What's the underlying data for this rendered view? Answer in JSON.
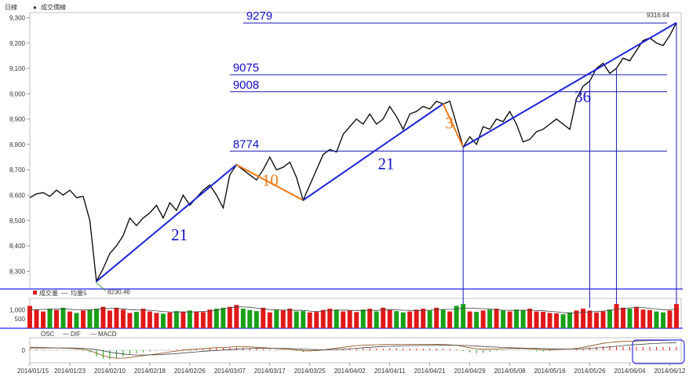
{
  "chart_data": {
    "type": "line",
    "header": {
      "period_label": "日線",
      "series_label": "成交價線"
    },
    "colors": {
      "price": "#000000",
      "trend": "#1e24d8",
      "correction": "#f07a14",
      "level": "#1a1ab4",
      "up": "#e01818",
      "down": "#18a018",
      "frame": "#2020ff",
      "annotation": "#1010c8"
    },
    "price": {
      "ylim": [
        8230,
        9320
      ],
      "yticks": [
        8300,
        8400,
        8500,
        8600,
        8700,
        8800,
        8900,
        9000,
        9100,
        9200,
        9300
      ],
      "ytick_labels": [
        "8,300",
        "8,400",
        "8,500",
        "8,600",
        "8,700",
        "8,800",
        "8,900",
        "9,000",
        "9,100",
        "9,200",
        "9,300"
      ],
      "low_label": "8230.46",
      "high_label": "9316.64",
      "values": [
        8590,
        8605,
        8610,
        8595,
        8620,
        8600,
        8620,
        8590,
        8595,
        8500,
        8260,
        8310,
        8370,
        8400,
        8440,
        8510,
        8480,
        8510,
        8530,
        8560,
        8510,
        8570,
        8540,
        8600,
        8560,
        8590,
        8620,
        8640,
        8600,
        8550,
        8680,
        8720,
        8700,
        8680,
        8660,
        8700,
        8750,
        8700,
        8710,
        8730,
        8670,
        8580,
        8640,
        8700,
        8760,
        8780,
        8770,
        8840,
        8870,
        8900,
        8880,
        8920,
        8880,
        8900,
        8950,
        8910,
        8860,
        8920,
        8930,
        8950,
        8940,
        8970,
        8960,
        8970,
        8880,
        8790,
        8830,
        8800,
        8870,
        8860,
        8900,
        8890,
        8930,
        8880,
        8810,
        8820,
        8850,
        8860,
        8880,
        8900,
        8880,
        8860,
        8980,
        9030,
        9050,
        9100,
        9120,
        9080,
        9100,
        9140,
        9130,
        9170,
        9210,
        9220,
        9200,
        9190,
        9230,
        9280
      ]
    },
    "trend_lines": [
      {
        "label": "21",
        "from": 10,
        "to": 31,
        "color_key": "trend"
      },
      {
        "label": "10",
        "from": 31,
        "to": 41,
        "color_key": "correction"
      },
      {
        "label": "21",
        "from": 41,
        "to": 62,
        "color_key": "trend"
      },
      {
        "label": "3",
        "from": 62,
        "to": 65,
        "color_key": "correction"
      },
      {
        "label": "36",
        "from": 65,
        "to": 97,
        "color_key": "trend"
      }
    ],
    "levels": [
      {
        "label": "9279",
        "value": 9279,
        "from": 32
      },
      {
        "label": "9075",
        "value": 9075,
        "from": 30
      },
      {
        "label": "9008",
        "value": 9008,
        "from": 30
      },
      {
        "label": "8774",
        "value": 8774,
        "from": 30
      }
    ],
    "vertical_markers": [
      65,
      84,
      88,
      97
    ],
    "volume": {
      "legend_label": "成交量",
      "ma_label": "均量5",
      "ylim": [
        0,
        1600
      ],
      "yticks": [
        500,
        1000
      ],
      "ytick_labels": [
        "500",
        "1,000"
      ],
      "values": [
        1200,
        1000,
        900,
        1050,
        980,
        1100,
        900,
        820,
        950,
        1000,
        1050,
        1150,
        950,
        1100,
        1000,
        820,
        880,
        1050,
        900,
        820,
        780,
        850,
        920,
        880,
        950,
        900,
        870,
        1000,
        1050,
        1100,
        1150,
        1250,
        1050,
        980,
        920,
        1100,
        850,
        1000,
        980,
        1050,
        900,
        920,
        850,
        880,
        980,
        1050,
        1000,
        900,
        950,
        870,
        1000,
        1050,
        900,
        1100,
        980,
        920,
        850,
        900,
        1000,
        1050,
        950,
        1100,
        1000,
        900,
        1200,
        1300,
        900,
        880,
        950,
        1000,
        1050,
        950,
        900,
        1000,
        980,
        1050,
        900,
        880,
        820,
        800,
        750,
        850,
        950,
        1050,
        950,
        850,
        900,
        1000,
        1300,
        1100,
        1050,
        1150,
        1000,
        980,
        900,
        850,
        950,
        1300
      ],
      "ma_values": [
        1000,
        1000,
        1010,
        1020,
        1025,
        1030,
        1020,
        990,
        980,
        980,
        1010,
        1050,
        1060,
        1070,
        1040,
        1000,
        980,
        975,
        965,
        930,
        900,
        880,
        870,
        875,
        880,
        885,
        900,
        920,
        960,
        1030,
        1090,
        1150,
        1140,
        1130,
        1080,
        1040,
        1000,
        990,
        970,
        980,
        960,
        960,
        920,
        900,
        920,
        950,
        970,
        975,
        960,
        955,
        960,
        960,
        955,
        990,
        1000,
        990,
        970,
        960,
        940,
        950,
        970,
        1000,
        1010,
        1010,
        1030,
        1080,
        1080,
        1060,
        1050,
        1030,
        1000,
        970,
        960,
        960,
        970,
        970,
        950,
        940,
        910,
        880,
        840,
        810,
        820,
        860,
        880,
        900,
        920,
        960,
        1010,
        1060,
        1090,
        1120,
        1110,
        1070,
        1030,
        1000,
        990,
        1030
      ]
    },
    "macd": {
      "labels": [
        "OSC",
        "DIF",
        "MACD"
      ],
      "zero_label": "0",
      "ylim": [
        -60,
        60
      ],
      "osc": [
        5,
        4,
        3,
        2,
        2,
        1,
        0,
        -2,
        -4,
        -10,
        -30,
        -40,
        -42,
        -38,
        -30,
        -22,
        -15,
        -10,
        -6,
        -3,
        0,
        2,
        4,
        5,
        6,
        7,
        8,
        9,
        10,
        11,
        12,
        14,
        12,
        10,
        8,
        6,
        4,
        3,
        2,
        1,
        -4,
        -8,
        -6,
        -3,
        0,
        2,
        4,
        6,
        8,
        10,
        10,
        9,
        8,
        8,
        9,
        9,
        8,
        8,
        8,
        8,
        8,
        8,
        7,
        6,
        4,
        -4,
        -10,
        -14,
        -12,
        -8,
        -4,
        -2,
        0,
        1,
        0,
        -3,
        -5,
        -6,
        -4,
        -2,
        0,
        1,
        4,
        8,
        12,
        16,
        18,
        18,
        18,
        17,
        16,
        16,
        16,
        16,
        16,
        15,
        15,
        16
      ],
      "dif": [
        14,
        14,
        13,
        12,
        11,
        10,
        9,
        7,
        4,
        -2,
        -14,
        -26,
        -34,
        -38,
        -38,
        -35,
        -30,
        -26,
        -22,
        -18,
        -13,
        -8,
        -4,
        0,
        3,
        6,
        8,
        10,
        12,
        13,
        15,
        17,
        17,
        16,
        14,
        12,
        10,
        8,
        6,
        5,
        1,
        -3,
        -3,
        -1,
        2,
        6,
        10,
        14,
        18,
        22,
        24,
        25,
        26,
        27,
        28,
        28,
        28,
        28,
        28,
        28,
        28,
        28,
        27,
        26,
        24,
        18,
        12,
        7,
        5,
        5,
        6,
        7,
        8,
        8,
        8,
        6,
        5,
        3,
        3,
        4,
        5,
        6,
        9,
        14,
        20,
        27,
        33,
        37,
        40,
        42,
        43,
        44,
        45,
        46,
        47,
        47,
        48,
        49
      ],
      "macd": [
        11,
        11,
        11,
        11,
        11,
        11,
        11,
        10,
        9,
        7,
        3,
        -3,
        -9,
        -14,
        -18,
        -21,
        -23,
        -23,
        -22,
        -22,
        -20,
        -18,
        -16,
        -13,
        -10,
        -8,
        -5,
        -3,
        -1,
        1,
        3,
        5,
        7,
        8,
        9,
        9,
        9,
        9,
        9,
        8,
        7,
        5,
        4,
        3,
        2,
        3,
        4,
        5,
        7,
        9,
        12,
        14,
        16,
        18,
        19,
        20,
        21,
        22,
        22,
        23,
        23,
        24,
        24,
        24,
        24,
        23,
        22,
        20,
        18,
        16,
        15,
        13,
        12,
        11,
        10,
        9,
        9,
        8,
        7,
        6,
        6,
        6,
        6,
        7,
        9,
        11,
        13,
        16,
        19,
        22,
        25,
        27,
        29,
        31,
        32,
        34,
        35,
        36
      ]
    },
    "x_labels": [
      "2014/01/15",
      "2014/01/23",
      "2014/02/10",
      "2014/02/18",
      "2014/02/26",
      "2014/03/07",
      "2014/03/17",
      "2014/03/25",
      "2014/04/02",
      "2014/04/11",
      "2014/04/21",
      "2014/04/29",
      "2014/05/08",
      "2014/05/16",
      "2014/05/26",
      "2014/06/04",
      "2014/06/12"
    ],
    "x_label_index": [
      0,
      6,
      12,
      18,
      24,
      30,
      36,
      42,
      48,
      54,
      60,
      66,
      72,
      78,
      84,
      90,
      96
    ]
  }
}
